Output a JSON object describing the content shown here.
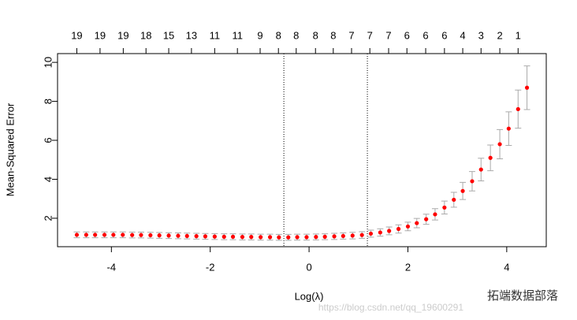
{
  "chart_data": {
    "type": "errorbar",
    "xlabel": "Log(λ)",
    "ylabel": "Mean-Squared Error",
    "x": [
      -4.7,
      -4.51,
      -4.33,
      -4.14,
      -3.96,
      -3.77,
      -3.58,
      -3.4,
      -3.21,
      -3.03,
      -2.84,
      -2.65,
      -2.47,
      -2.28,
      -2.1,
      -1.91,
      -1.72,
      -1.54,
      -1.35,
      -1.17,
      -0.98,
      -0.79,
      -0.61,
      -0.42,
      -0.24,
      -0.05,
      0.14,
      0.32,
      0.51,
      0.69,
      0.88,
      1.07,
      1.25,
      1.44,
      1.62,
      1.81,
      2.0,
      2.18,
      2.37,
      2.55,
      2.74,
      2.93,
      3.11,
      3.3,
      3.48,
      3.67,
      3.86,
      4.04,
      4.23,
      4.41
    ],
    "values": [
      1.15,
      1.15,
      1.15,
      1.15,
      1.15,
      1.15,
      1.14,
      1.14,
      1.13,
      1.12,
      1.11,
      1.1,
      1.09,
      1.08,
      1.07,
      1.06,
      1.05,
      1.05,
      1.04,
      1.04,
      1.03,
      1.03,
      1.02,
      1.02,
      1.03,
      1.03,
      1.04,
      1.05,
      1.07,
      1.09,
      1.11,
      1.14,
      1.21,
      1.27,
      1.35,
      1.45,
      1.58,
      1.75,
      1.95,
      2.2,
      2.55,
      2.95,
      3.4,
      3.9,
      4.5,
      5.1,
      5.8,
      6.6,
      7.6,
      8.7
    ],
    "errors": [
      0.15,
      0.15,
      0.15,
      0.15,
      0.15,
      0.15,
      0.15,
      0.15,
      0.15,
      0.15,
      0.15,
      0.15,
      0.15,
      0.15,
      0.15,
      0.15,
      0.15,
      0.15,
      0.15,
      0.15,
      0.15,
      0.15,
      0.15,
      0.15,
      0.15,
      0.15,
      0.15,
      0.15,
      0.16,
      0.16,
      0.17,
      0.17,
      0.18,
      0.19,
      0.2,
      0.21,
      0.22,
      0.24,
      0.26,
      0.29,
      0.33,
      0.38,
      0.44,
      0.5,
      0.58,
      0.66,
      0.75,
      0.86,
      0.98,
      1.12
    ],
    "color": "#ff0000",
    "errorbar_color": "#aaaaaa",
    "vlines": [
      -0.51,
      1.18
    ],
    "xlim": [
      -5.09,
      4.8
    ],
    "ylim": [
      0.54,
      10.45
    ],
    "xticks": [
      -4,
      -2,
      0,
      2,
      4
    ],
    "yticks": [
      2,
      4,
      6,
      8,
      10
    ],
    "top_ticks": [
      {
        "value": -4.7,
        "label": "19"
      },
      {
        "value": -4.23,
        "label": "19"
      },
      {
        "value": -3.76,
        "label": "19"
      },
      {
        "value": -3.3,
        "label": "18"
      },
      {
        "value": -2.84,
        "label": "15"
      },
      {
        "value": -2.38,
        "label": "13"
      },
      {
        "value": -1.91,
        "label": "11"
      },
      {
        "value": -1.45,
        "label": "11"
      },
      {
        "value": -0.99,
        "label": "9"
      },
      {
        "value": -0.62,
        "label": "8"
      },
      {
        "value": -0.26,
        "label": "8"
      },
      {
        "value": 0.13,
        "label": "8"
      },
      {
        "value": 0.49,
        "label": "8"
      },
      {
        "value": 0.86,
        "label": "7"
      },
      {
        "value": 1.23,
        "label": "7"
      },
      {
        "value": 1.61,
        "label": "7"
      },
      {
        "value": 1.98,
        "label": "6"
      },
      {
        "value": 2.36,
        "label": "6"
      },
      {
        "value": 2.74,
        "label": "6"
      },
      {
        "value": 3.11,
        "label": "4"
      },
      {
        "value": 3.48,
        "label": "3"
      },
      {
        "value": 3.86,
        "label": "2"
      },
      {
        "value": 4.23,
        "label": "1"
      }
    ],
    "watermark": "https://blog.csdn.net/qq_19600291",
    "brand": "拓端数据部落"
  }
}
